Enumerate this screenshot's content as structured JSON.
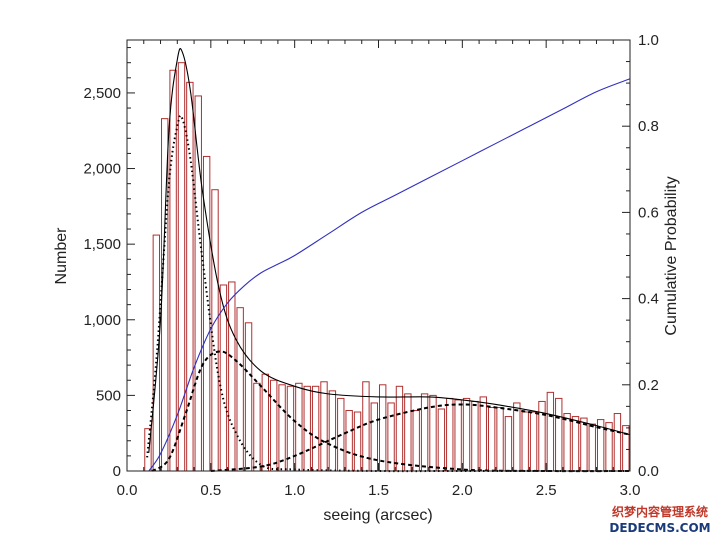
{
  "chart_data": {
    "type": "bar",
    "xlabel": "seeing (arcsec)",
    "ylabel": "Number",
    "y2label": "Cumulative Probability",
    "xlim": [
      0.0,
      3.0
    ],
    "ylim": [
      0,
      2850
    ],
    "y2lim": [
      0.0,
      1.0
    ],
    "grid": false,
    "x_ticks": [
      "0.0",
      "0.5",
      "1.0",
      "1.5",
      "2.0",
      "2.5",
      "3.0"
    ],
    "y_ticks": [
      "0",
      "500",
      "1,000",
      "1,500",
      "2,000",
      "2,500"
    ],
    "y2_ticks": [
      "0.0",
      "0.2",
      "0.4",
      "0.6",
      "0.8",
      "1.0"
    ],
    "histogram": {
      "bin_width": 0.05,
      "bin_starts": [
        0.1,
        0.15,
        0.2,
        0.25,
        0.3,
        0.35,
        0.4,
        0.45,
        0.5,
        0.55,
        0.6,
        0.65,
        0.7,
        0.75,
        0.8,
        0.85,
        0.9,
        0.95,
        1.0,
        1.05,
        1.1,
        1.15,
        1.2,
        1.25,
        1.3,
        1.35,
        1.4,
        1.45,
        1.5,
        1.55,
        1.6,
        1.65,
        1.7,
        1.75,
        1.8,
        1.85,
        1.9,
        1.95,
        2.0,
        2.05,
        2.1,
        2.15,
        2.2,
        2.25,
        2.3,
        2.35,
        2.4,
        2.45,
        2.5,
        2.55,
        2.6,
        2.65,
        2.7,
        2.75,
        2.8,
        2.85,
        2.9,
        2.95
      ],
      "values": [
        280,
        1560,
        2330,
        2650,
        2700,
        2570,
        2480,
        2080,
        1860,
        1230,
        1250,
        1080,
        980,
        580,
        640,
        600,
        570,
        560,
        580,
        560,
        560,
        590,
        530,
        480,
        400,
        390,
        590,
        450,
        570,
        450,
        560,
        510,
        400,
        510,
        500,
        410,
        480,
        470,
        480,
        460,
        490,
        420,
        420,
        360,
        450,
        390,
        390,
        460,
        520,
        480,
        380,
        360,
        350,
        310,
        340,
        320,
        380,
        300
      ]
    },
    "series": [
      {
        "name": "",
        "style": "solid",
        "color": "#000000",
        "x": [
          0.13,
          0.2,
          0.25,
          0.3,
          0.33,
          0.38,
          0.45,
          0.55,
          0.65,
          0.8,
          1.0,
          1.2,
          1.5,
          1.8,
          2.0,
          2.2,
          2.5,
          2.8,
          3.0
        ],
        "values": [
          120,
          1000,
          2250,
          2720,
          2770,
          2500,
          1850,
          1200,
          870,
          660,
          560,
          510,
          490,
          490,
          470,
          440,
          380,
          300,
          240
        ]
      },
      {
        "name": "",
        "style": "dotted",
        "color": "#000000",
        "x": [
          0.12,
          0.18,
          0.25,
          0.3,
          0.33,
          0.38,
          0.45,
          0.55,
          0.65,
          0.8,
          1.0,
          1.5,
          2.0,
          3.0
        ],
        "values": [
          90,
          800,
          1900,
          2280,
          2330,
          2050,
          1400,
          600,
          250,
          40,
          10,
          0,
          0,
          0
        ]
      },
      {
        "name": "",
        "style": "dashed",
        "color": "#000000",
        "x": [
          0.15,
          0.25,
          0.35,
          0.45,
          0.55,
          0.65,
          0.8,
          1.0,
          1.2,
          1.5,
          2.0,
          2.5,
          3.0
        ],
        "values": [
          0,
          80,
          380,
          700,
          790,
          730,
          560,
          330,
          180,
          70,
          10,
          0,
          0
        ]
      },
      {
        "name": "",
        "style": "dashed",
        "color": "#000000",
        "x": [
          0.5,
          0.8,
          1.0,
          1.3,
          1.5,
          1.8,
          2.0,
          2.2,
          2.5,
          2.8,
          3.0
        ],
        "values": [
          0,
          30,
          100,
          250,
          340,
          420,
          440,
          420,
          370,
          290,
          240
        ]
      },
      {
        "name": "",
        "style": "solid",
        "axis": "y2",
        "color": "#3030c0",
        "x": [
          0.13,
          0.2,
          0.3,
          0.4,
          0.5,
          0.6,
          0.7,
          0.8,
          0.9,
          1.0,
          1.2,
          1.4,
          1.6,
          1.8,
          2.0,
          2.2,
          2.4,
          2.6,
          2.8,
          3.0
        ],
        "values": [
          0.0,
          0.04,
          0.13,
          0.24,
          0.33,
          0.39,
          0.43,
          0.46,
          0.48,
          0.5,
          0.55,
          0.6,
          0.64,
          0.68,
          0.72,
          0.76,
          0.8,
          0.84,
          0.88,
          0.91
        ]
      }
    ]
  },
  "watermark": {
    "line1": "织梦内容管理系统",
    "line2": "DEDECMS.COM"
  },
  "colors": {
    "histogram_bar": "#b03030",
    "fit_lines": "#000000",
    "cumulative": "#3030c0"
  }
}
